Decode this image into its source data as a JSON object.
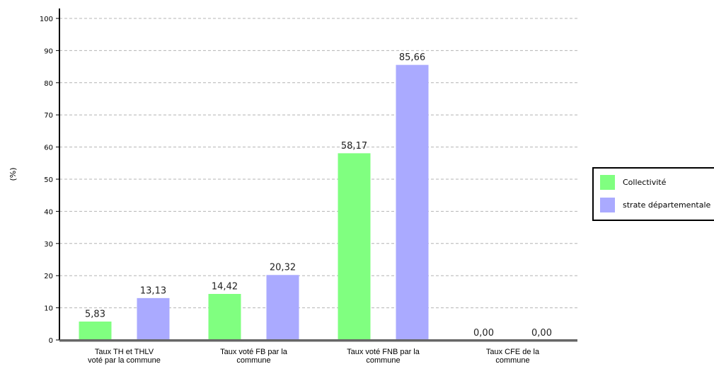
{
  "chart_data": {
    "type": "bar",
    "ylabel": "(%)",
    "ylim": [
      0,
      100
    ],
    "yticks": [
      0,
      10,
      20,
      30,
      40,
      50,
      60,
      70,
      80,
      90,
      100
    ],
    "grid": true,
    "legend_position": "right",
    "categories": [
      [
        "Taux TH et THLV",
        "voté par la commune"
      ],
      [
        "Taux voté FB par la",
        "commune"
      ],
      [
        "Taux voté FNB par la",
        "commune"
      ],
      [
        "Taux CFE de la",
        "commune"
      ]
    ],
    "series": [
      {
        "name": "Collectivité",
        "color": "#80ff80",
        "values": [
          5.83,
          14.42,
          58.17,
          0.0
        ],
        "labels": [
          "5,83",
          "14,42",
          "58,17",
          "0,00"
        ]
      },
      {
        "name": "strate départementale",
        "color": "#aaaaff",
        "values": [
          13.13,
          20.32,
          85.66,
          0.0
        ],
        "labels": [
          "13,13",
          "20,32",
          "85,66",
          "0,00"
        ]
      }
    ]
  }
}
